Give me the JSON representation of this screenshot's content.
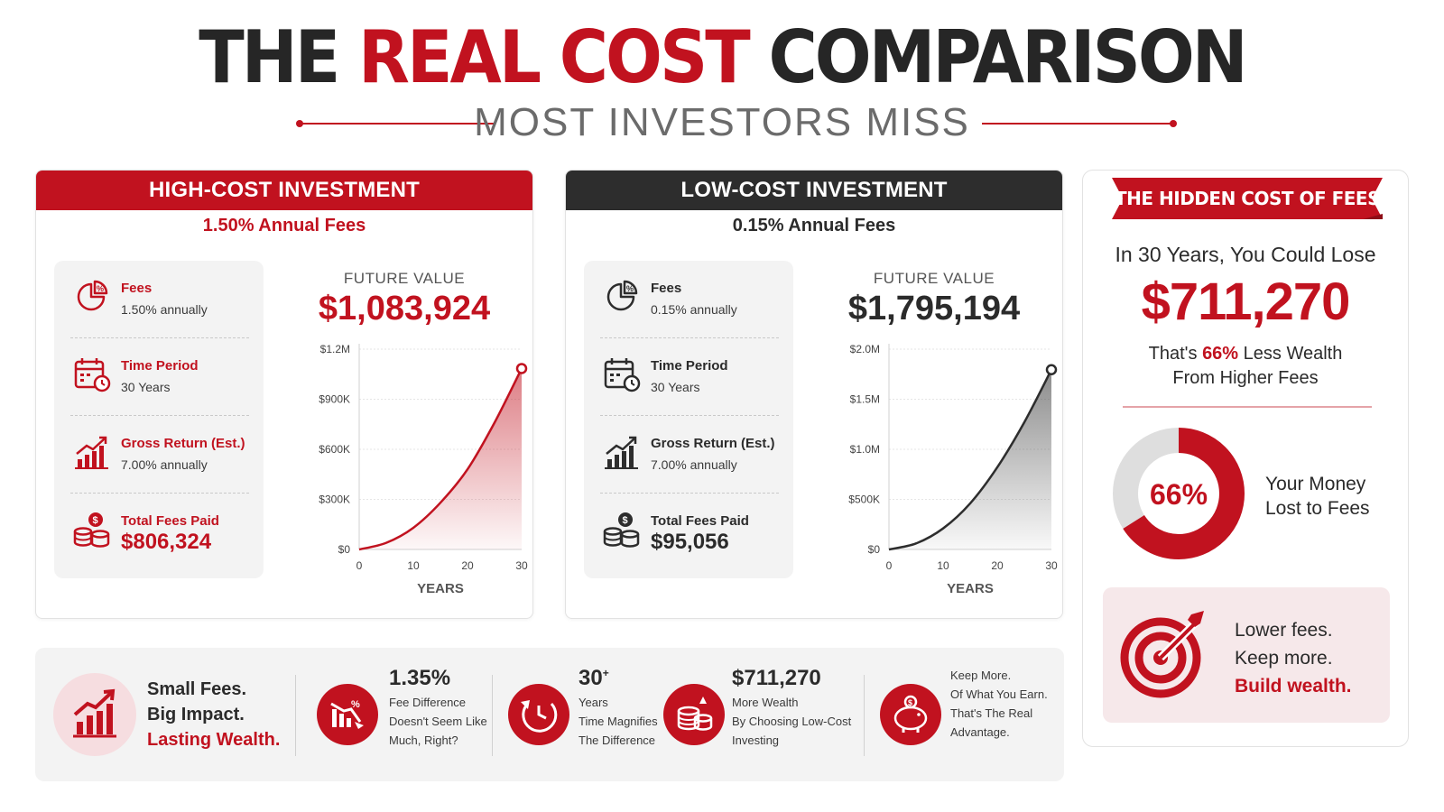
{
  "header": {
    "title_part1": "THE",
    "title_part2": "REAL COST",
    "title_part3": "COMPARISON",
    "subtitle": "MOST INVESTORS MISS"
  },
  "colors": {
    "accent": "#c1121f",
    "dark": "#2d2d2d",
    "light_panel": "#f3f3f3",
    "pink_panel": "#f6e8ea"
  },
  "high_cost": {
    "header": "HIGH-COST INVESTMENT",
    "fee_line": "1.50% Annual Fees",
    "stats": [
      {
        "icon": "pie-percent-icon",
        "label": "Fees",
        "value": "1.50% annually"
      },
      {
        "icon": "calendar-clock-icon",
        "label": "Time Period",
        "value": "30 Years"
      },
      {
        "icon": "growth-bars-icon",
        "label": "Gross Return (Est.)",
        "value": "7.00% annually"
      },
      {
        "icon": "coins-icon",
        "label": "Total Fees Paid",
        "value": "$806,324"
      }
    ],
    "future_value_label": "FUTURE VALUE",
    "future_value": "$1,083,924"
  },
  "low_cost": {
    "header": "LOW-COST INVESTMENT",
    "fee_line": "0.15% Annual Fees",
    "stats": [
      {
        "icon": "pie-percent-icon",
        "label": "Fees",
        "value": "0.15% annually"
      },
      {
        "icon": "calendar-clock-icon",
        "label": "Time Period",
        "value": "30 Years"
      },
      {
        "icon": "growth-bars-icon",
        "label": "Gross Return (Est.)",
        "value": "7.00% annually"
      },
      {
        "icon": "coins-icon",
        "label": "Total Fees Paid",
        "value": "$95,056"
      }
    ],
    "future_value_label": "FUTURE VALUE",
    "future_value": "$1,795,194"
  },
  "chart_data": [
    {
      "type": "area",
      "title": "",
      "xlabel": "YEARS",
      "ylabel": "",
      "x": [
        0,
        5,
        10,
        15,
        20,
        25,
        30
      ],
      "series": [
        {
          "name": "",
          "values": [
            0,
            40000,
            130000,
            280000,
            480000,
            760000,
            1083924
          ]
        }
      ],
      "xticks": [
        0,
        10,
        20,
        30
      ],
      "xlim": [
        0,
        30
      ],
      "yticks": [
        0,
        300000,
        600000,
        900000,
        1200000
      ],
      "ytick_labels": [
        "$0",
        "$300K",
        "$600K",
        "$900K",
        "$1.2M"
      ],
      "ylim": [
        0,
        1200000
      ],
      "grid": true,
      "color": "#c1121f"
    },
    {
      "type": "area",
      "title": "",
      "xlabel": "YEARS",
      "ylabel": "",
      "x": [
        0,
        5,
        10,
        15,
        20,
        25,
        30
      ],
      "series": [
        {
          "name": "",
          "values": [
            0,
            60000,
            210000,
            460000,
            820000,
            1270000,
            1795194
          ]
        }
      ],
      "xticks": [
        0,
        10,
        20,
        30
      ],
      "xlim": [
        0,
        30
      ],
      "yticks": [
        0,
        500000,
        1000000,
        1500000,
        2000000
      ],
      "ytick_labels": [
        "$0",
        "$500K",
        "$1.0M",
        "$1.5M",
        "$2.0M"
      ],
      "ylim": [
        0,
        2000000
      ],
      "grid": true,
      "color": "#2d2d2d"
    }
  ],
  "right_panel": {
    "ribbon": "THE HIDDEN COST OF FEES",
    "lose_label": "In 30 Years, You Could Lose",
    "lose_amount": "$711,270",
    "less_prefix": "That's",
    "less_pct": "66%",
    "less_suffix": "Less Wealth",
    "less_line2": "From Higher Fees",
    "donut_percent": 66,
    "donut_label": "66%",
    "donut_caption_1": "Your Money",
    "donut_caption_2": "Lost to Fees",
    "box_line1": "Lower fees.",
    "box_line2": "Keep more.",
    "box_line3": "Build wealth."
  },
  "bottom": {
    "intro_1": "Small Fees.",
    "intro_2": "Big Impact.",
    "intro_3": "Lasting Wealth.",
    "items": [
      {
        "icon": "fee-down-chart-icon",
        "title": "1.35%",
        "line1": "Fee Difference",
        "line2": "Doesn't Seem Like",
        "line3": "Much, Right?"
      },
      {
        "icon": "time-cycle-icon",
        "title": "30",
        "title_mark": "+",
        "line1": "Years",
        "line2": "Time Magnifies",
        "line3": "The Difference"
      },
      {
        "icon": "coin-stack-icon",
        "title": "$711,270",
        "line1": "More Wealth",
        "line2": "By Choosing Low-Cost",
        "line3": "Investing"
      },
      {
        "icon": "piggy-bank-icon",
        "title": "",
        "line1": "Keep More.",
        "line2": "Of What You Earn.",
        "line3": "That's The Real",
        "line4": "Advantage."
      }
    ]
  }
}
